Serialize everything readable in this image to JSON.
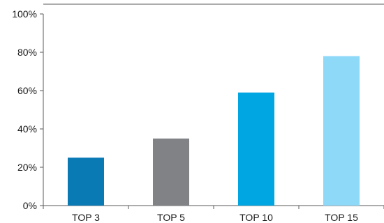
{
  "chart_data": {
    "type": "bar",
    "categories": [
      "TOP 3",
      "TOP 5",
      "TOP 10",
      "TOP 15"
    ],
    "values": [
      25,
      35,
      59,
      78
    ],
    "colors": [
      "#0a7ab5",
      "#808285",
      "#00a6e2",
      "#8ed8f8"
    ],
    "title": "",
    "xlabel": "",
    "ylabel": "",
    "ylim": [
      0,
      100
    ],
    "yticks": [
      0,
      20,
      40,
      60,
      80,
      100
    ],
    "ytick_labels": [
      "0%",
      "20%",
      "40%",
      "60%",
      "80%",
      "100%"
    ],
    "grid": false,
    "legend": "none"
  }
}
